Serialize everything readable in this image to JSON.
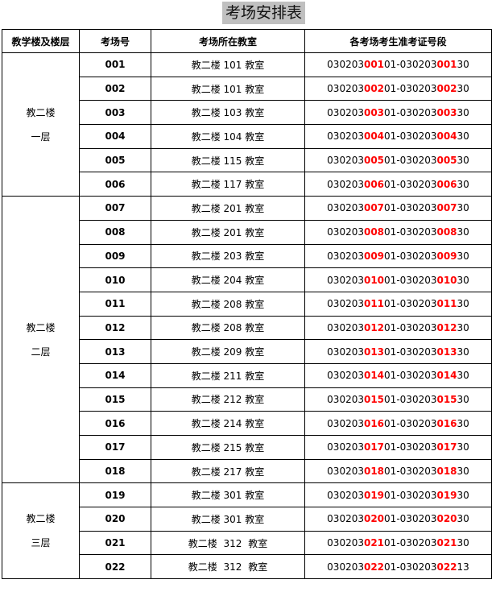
{
  "title": "考场安排表",
  "headers": [
    "教学楼及楼层",
    "考场号",
    "考场所在教室",
    "各考场考生准考证号段"
  ],
  "groups": [
    {
      "building": "教二楼",
      "floor": "一层",
      "rows": [
        0,
        1,
        2,
        3,
        4,
        5
      ]
    },
    {
      "building": "教二楼",
      "floor": "二层",
      "rows": [
        6,
        7,
        8,
        9,
        10,
        11,
        12,
        13,
        14,
        15,
        16,
        17
      ]
    },
    {
      "building": "教二楼",
      "floor": "三层",
      "rows": [
        18,
        19,
        20,
        21
      ]
    }
  ],
  "rows": [
    {
      "no": "001",
      "room": "教二楼 101 教室",
      "start": [
        "030203",
        "001",
        "01"
      ],
      "end": [
        "030203",
        "001",
        "30"
      ]
    },
    {
      "no": "002",
      "room": "教二楼 101 教室",
      "start": [
        "030203",
        "002",
        "01"
      ],
      "end": [
        "030203",
        "002",
        "30"
      ]
    },
    {
      "no": "003",
      "room": "教二楼 103 教室",
      "start": [
        "030203",
        "003",
        "01"
      ],
      "end": [
        "030203",
        "003",
        "30"
      ]
    },
    {
      "no": "004",
      "room": "教二楼 104 教室",
      "start": [
        "030203",
        "004",
        "01"
      ],
      "end": [
        "030203",
        "004",
        "30"
      ]
    },
    {
      "no": "005",
      "room": "教二楼 115 教室",
      "start": [
        "030203",
        "005",
        "01"
      ],
      "end": [
        "030203",
        "005",
        "30"
      ]
    },
    {
      "no": "006",
      "room": "教二楼 117 教室",
      "start": [
        "030203",
        "006",
        "01"
      ],
      "end": [
        "030203",
        "006",
        "30"
      ]
    },
    {
      "no": "007",
      "room": "教二楼 201 教室",
      "start": [
        "030203",
        "007",
        "01"
      ],
      "end": [
        "030203",
        "007",
        "30"
      ]
    },
    {
      "no": "008",
      "room": "教二楼 201 教室",
      "start": [
        "030203",
        "008",
        "01"
      ],
      "end": [
        "030203",
        "008",
        "30"
      ]
    },
    {
      "no": "009",
      "room": "教二楼 203 教室",
      "start": [
        "030203",
        "009",
        "01"
      ],
      "end": [
        "030203",
        "009",
        "30"
      ]
    },
    {
      "no": "010",
      "room": "教二楼 204 教室",
      "start": [
        "030203",
        "010",
        "01"
      ],
      "end": [
        "030203",
        "010",
        "30"
      ]
    },
    {
      "no": "011",
      "room": "教二楼 208 教室",
      "start": [
        "030203",
        "011",
        "01"
      ],
      "end": [
        "030203",
        "011",
        "30"
      ]
    },
    {
      "no": "012",
      "room": "教二楼 208 教室",
      "start": [
        "030203",
        "012",
        "01"
      ],
      "end": [
        "030203",
        "012",
        "30"
      ]
    },
    {
      "no": "013",
      "room": "教二楼 209 教室",
      "start": [
        "030203",
        "013",
        "01"
      ],
      "end": [
        "030203",
        "013",
        "30"
      ]
    },
    {
      "no": "014",
      "room": "教二楼 211 教室",
      "start": [
        "030203",
        "014",
        "01"
      ],
      "end": [
        "030203",
        "014",
        "30"
      ]
    },
    {
      "no": "015",
      "room": "教二楼 212 教室",
      "start": [
        "030203",
        "015",
        "01"
      ],
      "end": [
        "030203",
        "015",
        "30"
      ]
    },
    {
      "no": "016",
      "room": "教二楼 214 教室",
      "start": [
        "030203",
        "016",
        "01"
      ],
      "end": [
        "030203",
        "016",
        "30"
      ]
    },
    {
      "no": "017",
      "room": "教二楼 215 教室",
      "start": [
        "030203",
        "017",
        "01"
      ],
      "end": [
        "030203",
        "017",
        "30"
      ]
    },
    {
      "no": "018",
      "room": "教二楼 217 教室",
      "start": [
        "030203",
        "018",
        "01"
      ],
      "end": [
        "030203",
        "018",
        "30"
      ]
    },
    {
      "no": "019",
      "room": "教二楼 301 教室",
      "start": [
        "030203",
        "019",
        "01"
      ],
      "end": [
        "030203",
        "019",
        "30"
      ]
    },
    {
      "no": "020",
      "room": "教二楼 301 教室",
      "start": [
        "030203",
        "020",
        "01"
      ],
      "end": [
        "030203",
        "020",
        "30"
      ]
    },
    {
      "no": "021",
      "room": "教二楼 312 教室",
      "start": [
        "030203",
        "021",
        "01"
      ],
      "end": [
        "030203",
        "021",
        "30"
      ]
    },
    {
      "no": "022",
      "room": "教二楼 312 教室",
      "start": [
        "030203",
        "022",
        "01"
      ],
      "end": [
        "030203",
        "022",
        "13"
      ]
    }
  ]
}
